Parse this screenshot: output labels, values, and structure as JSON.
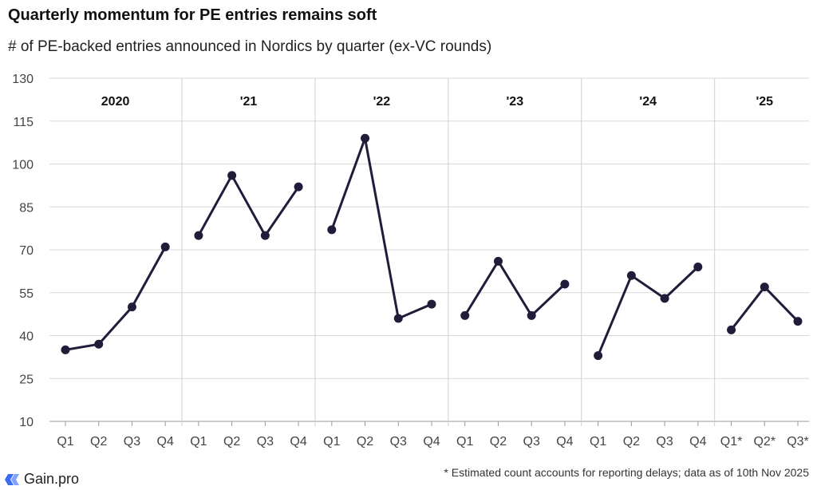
{
  "title": "Quarterly momentum for PE entries remains soft",
  "subtitle": "# of PE-backed entries announced in  Nordics by quarter (ex-VC rounds)",
  "footnote": "* Estimated count accounts for reporting delays; data as of 10th Nov 2025",
  "logo_text": "Gain.pro",
  "colors": {
    "line": "#1f1d3a",
    "grid": "#d9d9d9",
    "divider": "#cfcfcf",
    "logo": "#3a6cf4"
  },
  "chart_data": {
    "type": "line",
    "title": "Quarterly momentum for PE entries remains soft",
    "ylim": [
      10,
      130
    ],
    "yticks": [
      10,
      25,
      40,
      55,
      70,
      85,
      100,
      115,
      130
    ],
    "grid": true,
    "groups": [
      {
        "label": "2020",
        "quarters": [
          "Q1",
          "Q2",
          "Q3",
          "Q4"
        ],
        "values": [
          35,
          37,
          50,
          71
        ]
      },
      {
        "label": "'21",
        "quarters": [
          "Q1",
          "Q2",
          "Q3",
          "Q4"
        ],
        "values": [
          75,
          96,
          75,
          92
        ]
      },
      {
        "label": "'22",
        "quarters": [
          "Q1",
          "Q2",
          "Q3",
          "Q4"
        ],
        "values": [
          77,
          109,
          46,
          51
        ]
      },
      {
        "label": "'23",
        "quarters": [
          "Q1",
          "Q2",
          "Q3",
          "Q4"
        ],
        "values": [
          47,
          66,
          47,
          58
        ]
      },
      {
        "label": "'24",
        "quarters": [
          "Q1",
          "Q2",
          "Q3",
          "Q4"
        ],
        "values": [
          33,
          61,
          53,
          64
        ]
      },
      {
        "label": "'25",
        "quarters": [
          "Q1*",
          "Q2*",
          "Q3*"
        ],
        "values": [
          42,
          57,
          45
        ]
      }
    ]
  }
}
